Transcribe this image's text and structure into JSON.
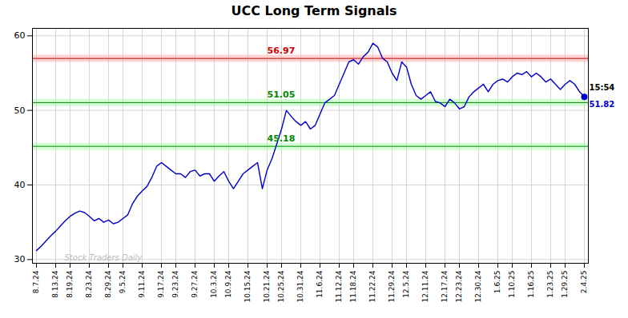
{
  "chart_data": {
    "type": "line",
    "title": "UCC Long Term Signals",
    "categories": [
      "8.7.24",
      null,
      null,
      null,
      "8.13.24",
      null,
      null,
      "8.19.24",
      null,
      null,
      null,
      "8.23.24",
      null,
      null,
      null,
      "8.29.24",
      null,
      null,
      "9.5.24",
      null,
      null,
      null,
      "9.11.24",
      null,
      null,
      null,
      "9.17.24",
      null,
      null,
      "9.23.24",
      null,
      null,
      null,
      "9.27.24",
      null,
      null,
      null,
      "10.3.24",
      null,
      null,
      "10.9.24",
      null,
      null,
      null,
      "10.15.24",
      null,
      null,
      null,
      "10.21.24",
      null,
      null,
      "10.25.24",
      null,
      null,
      null,
      "10.31.24",
      null,
      null,
      null,
      "11.6.24",
      null,
      null,
      null,
      "11.12.24",
      null,
      null,
      "11.18.24",
      null,
      null,
      null,
      "11.22.24",
      null,
      null,
      null,
      "11.29.24",
      null,
      null,
      "12.5.24",
      null,
      null,
      null,
      "12.11.24",
      null,
      null,
      null,
      "12.17.24",
      null,
      null,
      "12.23.24",
      null,
      null,
      null,
      "12.30.24",
      null,
      null,
      null,
      "1.6.25",
      null,
      null,
      "1.10.25",
      null,
      null,
      null,
      "1.16.25",
      null,
      null,
      null,
      "1.23.25",
      null,
      null,
      "1.29.25",
      null,
      null,
      null,
      "2.4.25"
    ],
    "values": [
      31.2,
      31.8,
      32.5,
      33.2,
      33.8,
      34.5,
      35.2,
      35.8,
      36.2,
      36.5,
      36.3,
      35.8,
      35.2,
      35.5,
      35.0,
      35.3,
      34.8,
      35.0,
      35.5,
      36.0,
      37.5,
      38.5,
      39.2,
      39.8,
      41.0,
      42.5,
      43.0,
      42.5,
      42.0,
      41.5,
      41.5,
      41.0,
      41.8,
      42.0,
      41.2,
      41.5,
      41.5,
      40.5,
      41.2,
      41.8,
      40.5,
      39.5,
      40.5,
      41.5,
      42.0,
      42.5,
      43.0,
      39.5,
      42.0,
      43.5,
      45.5,
      47.5,
      50.0,
      49.2,
      48.5,
      48.0,
      48.5,
      47.5,
      48.0,
      49.5,
      51.0,
      51.5,
      52.0,
      53.5,
      55.0,
      56.5,
      56.8,
      56.2,
      57.2,
      57.8,
      59.0,
      58.5,
      57.0,
      56.5,
      55.0,
      54.0,
      56.5,
      55.8,
      53.5,
      52.0,
      51.5,
      52.0,
      52.5,
      51.2,
      51.0,
      50.5,
      51.5,
      51.0,
      50.2,
      50.5,
      51.8,
      52.5,
      53.0,
      53.5,
      52.5,
      53.5,
      54.0,
      54.2,
      53.8,
      54.5,
      55.0,
      54.8,
      55.2,
      54.5,
      55.0,
      54.5,
      53.8,
      54.2,
      53.5,
      52.8,
      53.5,
      54.0,
      53.5,
      52.5,
      51.82
    ],
    "color": "#0000cc",
    "reference_lines": [
      {
        "y": 56.97,
        "label": "56.97",
        "color": "#cc0000",
        "band_color": "#ffaaaa"
      },
      {
        "y": 51.05,
        "label": "51.05",
        "color": "#008800",
        "band_color": "#aaffaa"
      },
      {
        "y": 45.18,
        "label": "45.18",
        "color": "#008800",
        "band_color": "#aaffaa"
      }
    ],
    "last_point": {
      "value": 51.82,
      "label": "51.82",
      "time": "15:54",
      "color": "#0000cc"
    },
    "watermark": {
      "text": "Stock Traders Daily",
      "color": "#bbbbbb"
    },
    "ylim": [
      29.5,
      61
    ],
    "yticks": [
      30,
      40,
      50,
      60
    ],
    "grid": true
  }
}
